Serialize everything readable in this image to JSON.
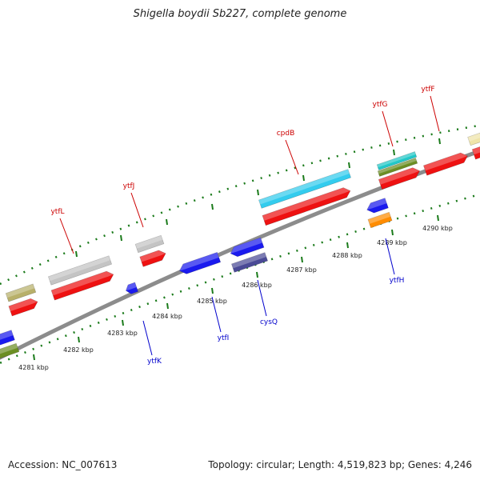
{
  "title": "Shigella boydii Sb227, complete genome",
  "footer": {
    "accession": "Accession: NC_007613",
    "stats": "Topology: circular; Length: 4,519,823 bp; Genes: 4,246"
  },
  "colors": {
    "backbone": "#8c8c8c",
    "tick": "#1a7a1a",
    "red": "#ee1111",
    "blue": "#1a1aee",
    "gray": "#c4c4c4",
    "cyan": "#33ccee",
    "olive": "#6b8e23",
    "khaki": "#b8b06a",
    "teal": "#22c8c8",
    "orange": "#ff8c00",
    "navy": "#4a4a96",
    "beige": "#efe4a8",
    "label_red": "#cc0000",
    "label_blue": "#0000cc"
  },
  "kbp_labels": [
    "4281 kbp",
    "4282 kbp",
    "4283 kbp",
    "4284 kbp",
    "4285 kbp",
    "4286 kbp",
    "4287 kbp",
    "4288 kbp",
    "4289 kbp",
    "4290 kbp"
  ],
  "forward_genes": [
    {
      "name": "ytfL",
      "color": "red"
    },
    {
      "name": "ytfJ",
      "color": "red"
    },
    {
      "name": "cpdB",
      "color": "red"
    },
    {
      "name": "ytfG",
      "color": "red"
    },
    {
      "name": "ytfF",
      "color": "red"
    }
  ],
  "reverse_genes": [
    {
      "name": "ytfK",
      "color": "blue"
    },
    {
      "name": "ytfI",
      "color": "blue"
    },
    {
      "name": "cysQ",
      "color": "blue"
    },
    {
      "name": "ytfH",
      "color": "blue"
    }
  ]
}
